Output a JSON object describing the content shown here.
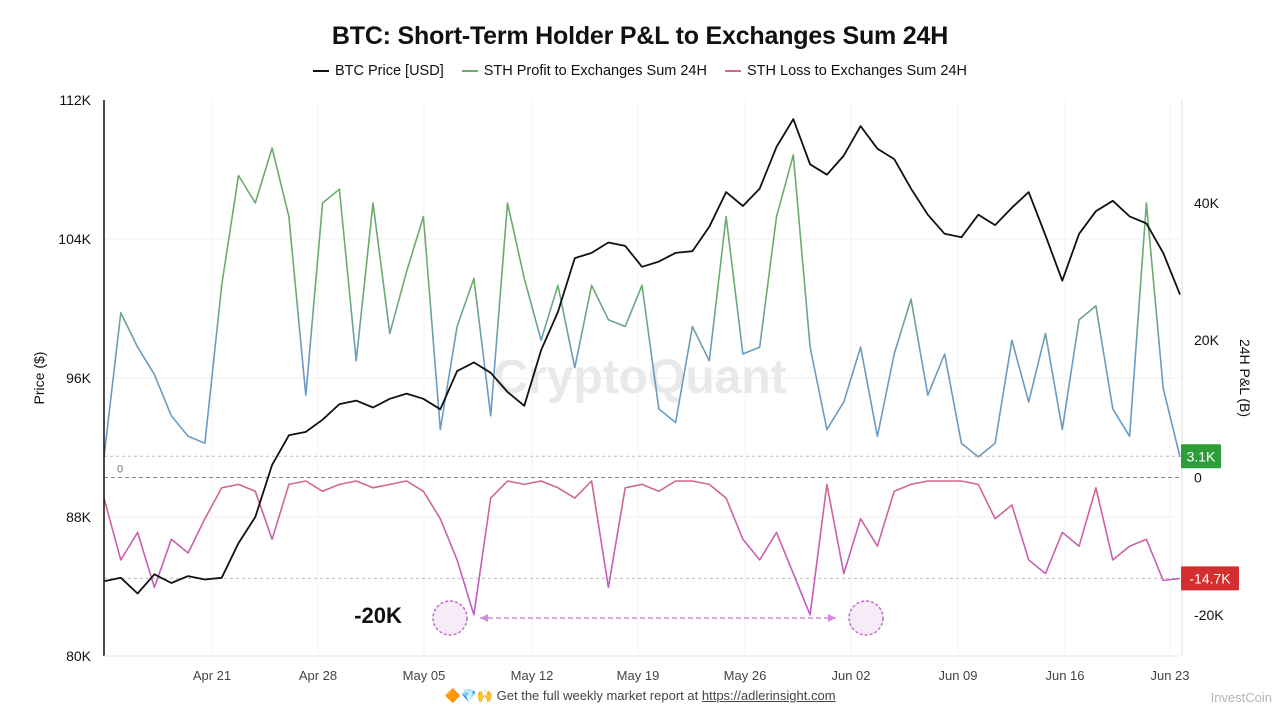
{
  "chart_data": {
    "type": "line",
    "title": "BTC: Short-Term Holder P&L to Exchanges Sum 24H",
    "legend": {
      "placement": "top-center"
    },
    "legend_entries": [
      {
        "name": "BTC Price [USD]",
        "color": "#111111"
      },
      {
        "name": "STH Profit to Exchanges Sum 24H",
        "color": "#6aab6e"
      },
      {
        "name": "STH Loss to Exchanges Sum 24H",
        "color": "#d2678f"
      }
    ],
    "left_axis": {
      "label": "Price ($)",
      "ticks": [
        "112K",
        "104K",
        "96K",
        "88K",
        "80K"
      ],
      "range": [
        80000,
        112000
      ]
    },
    "right_axis": {
      "label": "24H P&L (B)",
      "ticks": [
        "40K",
        "20K",
        "0",
        "-20K"
      ],
      "range": [
        -26000,
        55000
      ]
    },
    "x_axis": {
      "ticks": [
        "Apr 21",
        "Apr 28",
        "May 05",
        "May 12",
        "May 19",
        "May 26",
        "Jun 02",
        "Jun 09",
        "Jun 16",
        "Jun 23"
      ],
      "range": [
        0,
        64
      ]
    },
    "grid": true,
    "badges": [
      {
        "text": "3.1K",
        "value": 3100,
        "color": "#2e9e3a"
      },
      {
        "text": "-14.7K",
        "value": -14700,
        "color": "#d32f2f"
      }
    ],
    "zero_label": "0",
    "annotation": {
      "text": "-20K",
      "markers_x": [
        37.5,
        80.5
      ]
    },
    "series": [
      {
        "name": "BTC Price [USD]",
        "axis": "left",
        "x": [
          0,
          1,
          2,
          3,
          4,
          5,
          6,
          7,
          8,
          9,
          10,
          11,
          12,
          13,
          14,
          15,
          16,
          17,
          18,
          19,
          20,
          21,
          22,
          23,
          24,
          25,
          26,
          27,
          28,
          29,
          30,
          31,
          32,
          33,
          34,
          35,
          36,
          37,
          38,
          39,
          40,
          41,
          42,
          43,
          44,
          45,
          46,
          47,
          48,
          49,
          50,
          51,
          52,
          53,
          54,
          55,
          56,
          57,
          58,
          59,
          60,
          61,
          62,
          63,
          64
        ],
        "values": [
          84300,
          84500,
          83600,
          84700,
          84200,
          84600,
          84400,
          84500,
          86500,
          88000,
          91000,
          92700,
          92900,
          93600,
          94500,
          94700,
          94300,
          94800,
          95100,
          94800,
          94200,
          96400,
          96900,
          96300,
          95200,
          94400,
          97600,
          99800,
          102900,
          103200,
          103800,
          103600,
          102400,
          102700,
          103200,
          103300,
          104700,
          106700,
          105900,
          106900,
          109300,
          110900,
          108300,
          107700,
          108800,
          110500,
          109200,
          108600,
          106900,
          105400,
          104300,
          104100,
          105400,
          104800,
          105800,
          106700,
          104200,
          101600,
          104300,
          105600,
          106200,
          105300,
          104900,
          103200,
          100800
        ]
      },
      {
        "name": "STH Profit to Exchanges Sum 24H",
        "axis": "right",
        "x": [
          0,
          1,
          2,
          3,
          4,
          5,
          6,
          7,
          8,
          9,
          10,
          11,
          12,
          13,
          14,
          15,
          16,
          17,
          18,
          19,
          20,
          21,
          22,
          23,
          24,
          25,
          26,
          27,
          28,
          29,
          30,
          31,
          32,
          33,
          34,
          35,
          36,
          37,
          38,
          39,
          40,
          41,
          42,
          43,
          44,
          45,
          46,
          47,
          48,
          49,
          50,
          51,
          52,
          53,
          54,
          55,
          56,
          57,
          58,
          59,
          60,
          61,
          62,
          63,
          64
        ],
        "values": [
          3000,
          24000,
          19000,
          15000,
          9000,
          6000,
          5000,
          28000,
          44000,
          40000,
          48000,
          38000,
          12000,
          40000,
          42000,
          17000,
          40000,
          21000,
          30000,
          38000,
          7000,
          22000,
          29000,
          9000,
          40000,
          29000,
          20000,
          28000,
          16000,
          28000,
          23000,
          22000,
          28000,
          10000,
          8000,
          22000,
          17000,
          38000,
          18000,
          19000,
          38000,
          47000,
          19000,
          7000,
          11000,
          19000,
          6000,
          18000,
          26000,
          12000,
          18000,
          5000,
          3000,
          5000,
          20000,
          11000,
          21000,
          7000,
          23000,
          25000,
          10000,
          6000,
          40000,
          13000,
          3000
        ]
      },
      {
        "name": "STH Loss to Exchanges Sum 24H",
        "axis": "right",
        "x": [
          0,
          1,
          2,
          3,
          4,
          5,
          6,
          7,
          8,
          9,
          10,
          11,
          12,
          13,
          14,
          15,
          16,
          17,
          18,
          19,
          20,
          21,
          22,
          23,
          24,
          25,
          26,
          27,
          28,
          29,
          30,
          31,
          32,
          33,
          34,
          35,
          36,
          37,
          38,
          39,
          40,
          41,
          42,
          43,
          44,
          45,
          46,
          47,
          48,
          49,
          50,
          51,
          52,
          53,
          54,
          55,
          56,
          57,
          58,
          59,
          60,
          61,
          62,
          63,
          64
        ],
        "values": [
          -3000,
          -12000,
          -8000,
          -16000,
          -9000,
          -11000,
          -6000,
          -1500,
          -1000,
          -2000,
          -9000,
          -1000,
          -500,
          -2000,
          -1000,
          -500,
          -1500,
          -1000,
          -500,
          -2000,
          -6000,
          -12000,
          -20000,
          -3000,
          -500,
          -1000,
          -500,
          -1500,
          -3000,
          -500,
          -16000,
          -1500,
          -1000,
          -2000,
          -500,
          -500,
          -1000,
          -3000,
          -9000,
          -12000,
          -8000,
          -14000,
          -20000,
          -1000,
          -14000,
          -6000,
          -10000,
          -2000,
          -1000,
          -500,
          -500,
          -500,
          -1000,
          -6000,
          -4000,
          -12000,
          -14000,
          -8000,
          -10000,
          -1500,
          -12000,
          -10000,
          -9000,
          -15000,
          -14700
        ]
      }
    ]
  },
  "footer": {
    "emoji": "🔶💎🙌",
    "text": "Get the full weekly market report at",
    "link": "https://adlerinsight.com"
  },
  "watermark": {
    "chart": "CryptoQuant",
    "corner": "InvestCoin"
  }
}
